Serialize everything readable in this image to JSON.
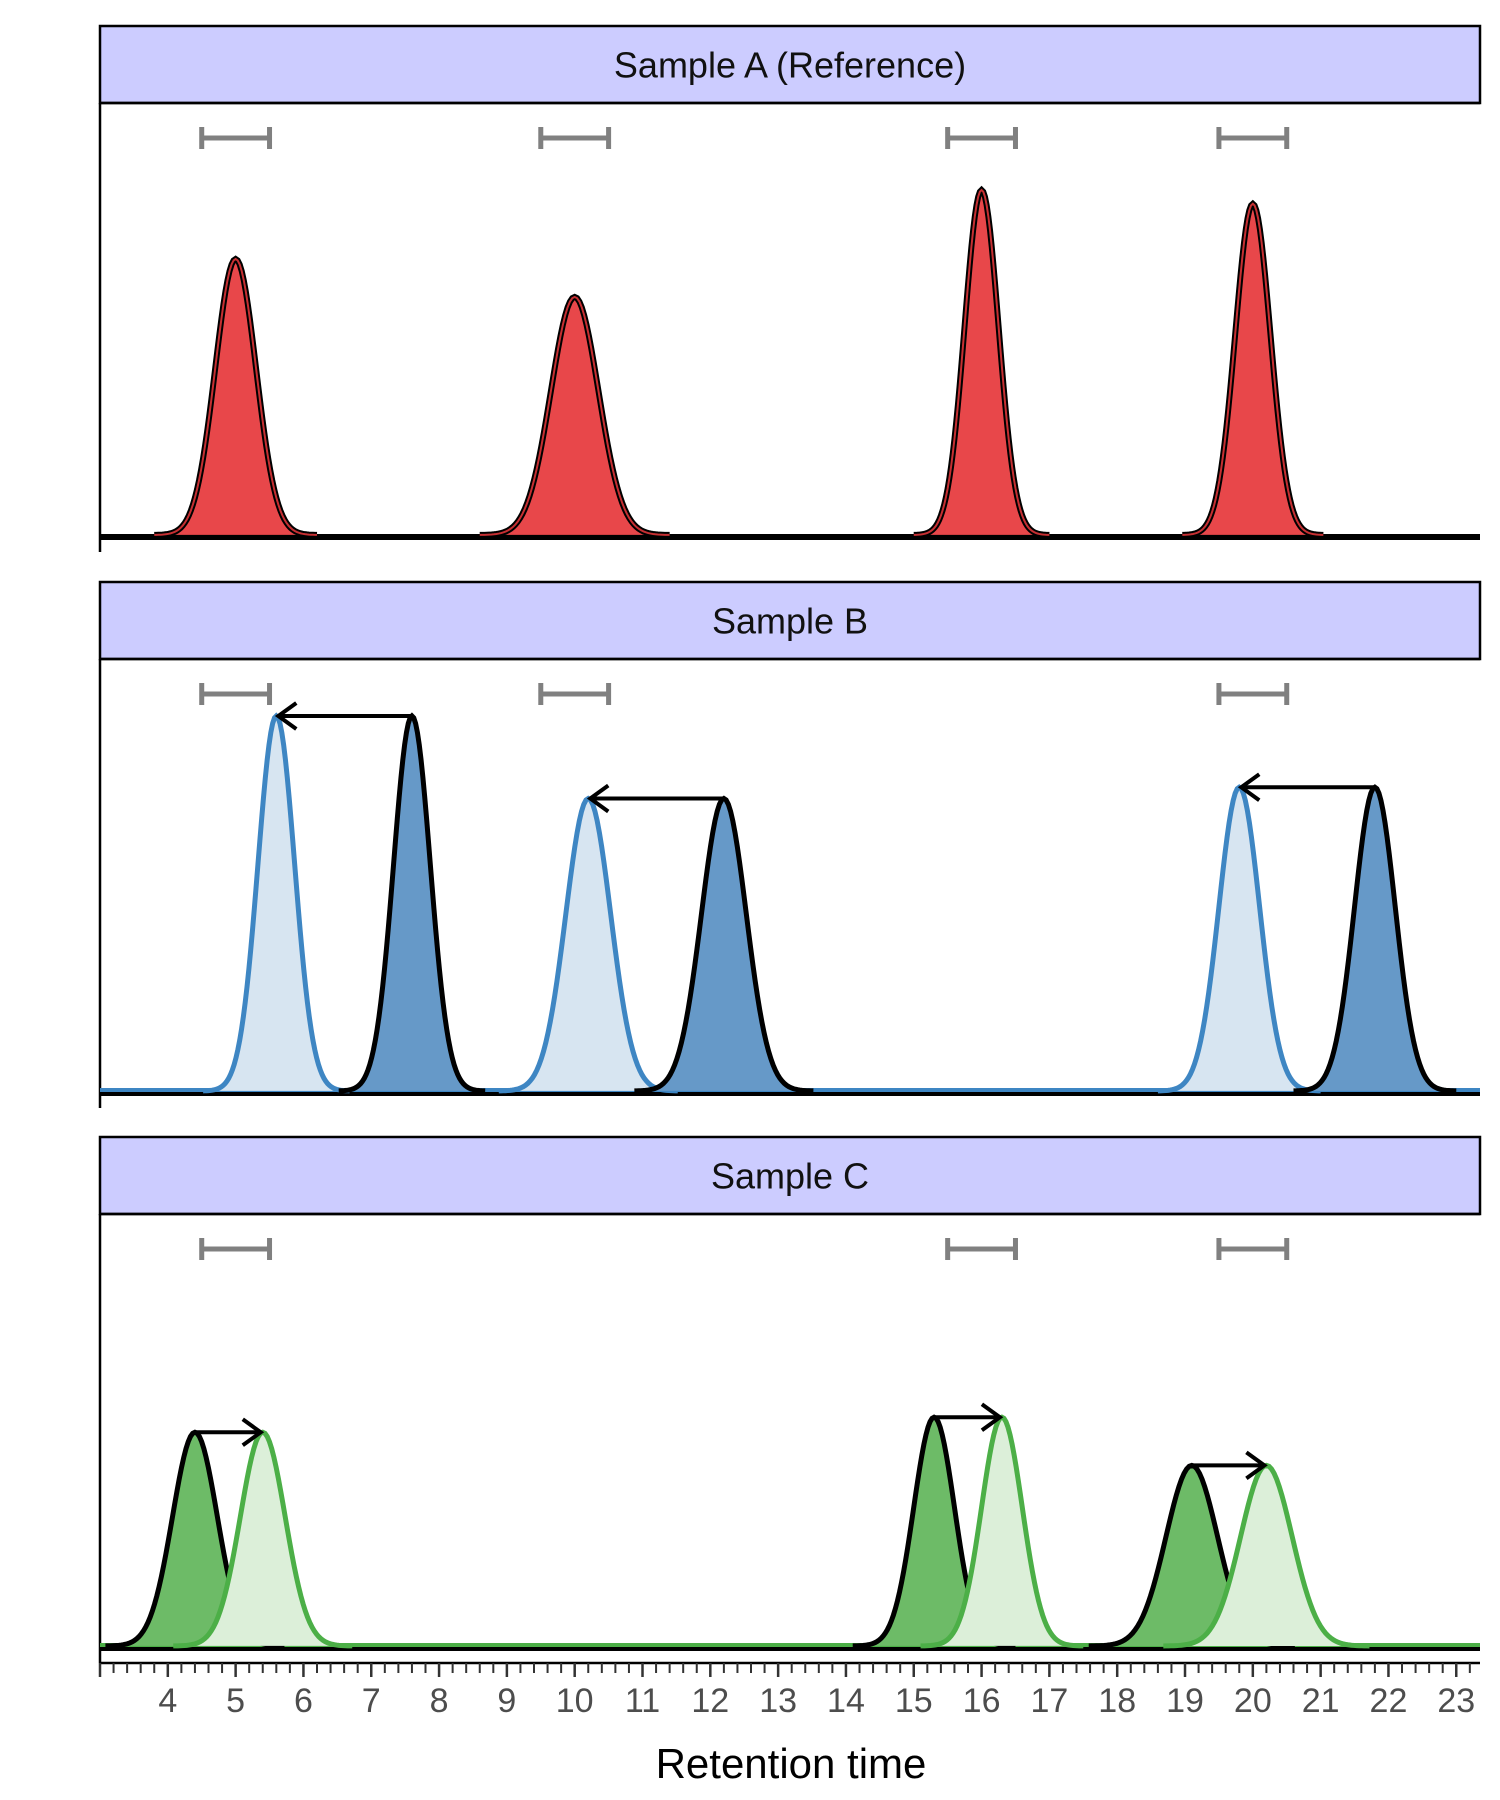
{
  "chart_data": {
    "type": "area",
    "x_axis": {
      "label": "Retention time",
      "range": [
        3,
        23.35
      ],
      "major_ticks": [
        4,
        5,
        6,
        7,
        8,
        9,
        10,
        11,
        12,
        13,
        14,
        15,
        16,
        17,
        18,
        19,
        20,
        21,
        22,
        23
      ],
      "minor_tick_step": 0.2
    },
    "y_axis": {
      "label": "",
      "range": [
        0,
        1.0
      ],
      "ticks_shown": false
    },
    "colors": {
      "strip_fill": "#ccccff",
      "sample_a": "#e8474a",
      "sample_a_edge": "#c62f32",
      "sample_b_dark": "#6699c8",
      "sample_b_light": "#d7e5f1",
      "sample_b_line": "#3e86c3",
      "sample_c_dark": "#6dbb67",
      "sample_c_light": "#dcefd9",
      "sample_c_line": "#4caf47",
      "window_bar": "#808080",
      "arrow": "#000000"
    },
    "panels": [
      {
        "title": "Sample A (Reference)",
        "windows": [
          5,
          10,
          16,
          20
        ],
        "peaks": [
          {
            "center": 5.0,
            "height": 0.8,
            "sigma": 0.3,
            "style": "reference"
          },
          {
            "center": 10.0,
            "height": 0.69,
            "sigma": 0.35,
            "style": "reference"
          },
          {
            "center": 16.0,
            "height": 1.0,
            "sigma": 0.25,
            "style": "reference"
          },
          {
            "center": 20.0,
            "height": 0.96,
            "sigma": 0.26,
            "style": "reference"
          }
        ],
        "arrows": []
      },
      {
        "title": "Sample B",
        "windows": [
          5,
          10,
          20
        ],
        "peaks": [
          {
            "center": 5.6,
            "height": 1.0,
            "sigma": 0.27,
            "style": "aligned"
          },
          {
            "center": 7.6,
            "height": 1.0,
            "sigma": 0.27,
            "style": "observed"
          },
          {
            "center": 10.2,
            "height": 0.78,
            "sigma": 0.33,
            "style": "aligned"
          },
          {
            "center": 12.2,
            "height": 0.78,
            "sigma": 0.33,
            "style": "observed"
          },
          {
            "center": 19.8,
            "height": 0.81,
            "sigma": 0.3,
            "style": "aligned"
          },
          {
            "center": 21.8,
            "height": 0.81,
            "sigma": 0.3,
            "style": "observed"
          }
        ],
        "arrows": [
          {
            "from": 7.6,
            "to": 5.6,
            "level": 1.0
          },
          {
            "from": 12.2,
            "to": 10.2,
            "level": 0.78
          },
          {
            "from": 21.8,
            "to": 19.8,
            "level": 0.81
          }
        ]
      },
      {
        "title": "Sample C",
        "windows": [
          5,
          16,
          20
        ],
        "peaks": [
          {
            "center": 4.4,
            "height": 0.71,
            "sigma": 0.33,
            "style": "observed"
          },
          {
            "center": 5.4,
            "height": 0.71,
            "sigma": 0.33,
            "style": "aligned"
          },
          {
            "center": 15.3,
            "height": 0.76,
            "sigma": 0.3,
            "style": "observed"
          },
          {
            "center": 16.3,
            "height": 0.76,
            "sigma": 0.3,
            "style": "aligned"
          },
          {
            "center": 19.1,
            "height": 0.6,
            "sigma": 0.38,
            "style": "observed"
          },
          {
            "center": 20.2,
            "height": 0.6,
            "sigma": 0.38,
            "style": "aligned"
          }
        ],
        "arrows": [
          {
            "from": 4.4,
            "to": 5.4,
            "level": 0.71
          },
          {
            "from": 15.3,
            "to": 16.3,
            "level": 0.76
          },
          {
            "from": 19.1,
            "to": 20.2,
            "level": 0.6
          }
        ]
      }
    ]
  }
}
